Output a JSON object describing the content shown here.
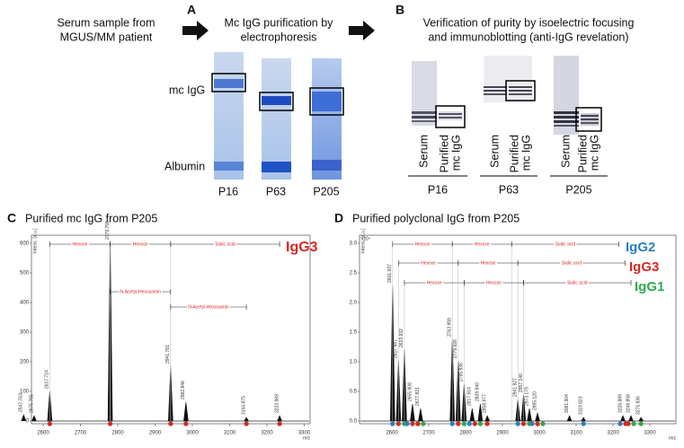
{
  "panel_a": {
    "label": "A",
    "step1": [
      "Serum sample from",
      "MGUS/MM patient"
    ],
    "step2": [
      "Mc IgG purification by",
      "electrophoresis"
    ],
    "band_labels": [
      "mc IgG",
      "Albumin"
    ],
    "lanes": [
      "P16",
      "P63",
      "P205"
    ]
  },
  "panel_b": {
    "label": "B",
    "title": [
      "Verification of purity by isoelectric focusing",
      "and immunoblotting (anti-IgG revelation)"
    ],
    "lane_labels": [
      "Serum",
      "Purified",
      "mc IgG"
    ],
    "samples": [
      "P16",
      "P63",
      "P205"
    ]
  },
  "panel_c": {
    "label": "C",
    "title": "Purified mc IgG from P205",
    "y_axis_label": "Intens. [a.u.]",
    "x_unit": "m/z",
    "xticks": [
      "2600",
      "2700",
      "2800",
      "2900",
      "3000",
      "3100",
      "3200",
      "3300"
    ],
    "yticks": [
      "0",
      "100",
      "200",
      "300",
      "400",
      "500",
      "600"
    ],
    "subclasses": [
      {
        "name": "IgG3",
        "color": "#d42a20"
      }
    ],
    "peaks": [
      "2547.763",
      "2575.755",
      "2617.724",
      "2779.755",
      "2941.781",
      "2982.846",
      "3144.875",
      "3233.969"
    ],
    "annotations": [
      "Hexose",
      "Hexose",
      "Sialic acid",
      "N-Acetyl-Hexosamin",
      "N-Acetyl-Hexosamin"
    ]
  },
  "panel_d": {
    "label": "D",
    "title": "Purified polyclonal IgG from P205",
    "y_axis_label": "Intens. [a.u.]",
    "y_exponent": "x10⁴",
    "x_unit": "m/z",
    "xticks": [
      "2600",
      "2700",
      "2800",
      "2900",
      "3000",
      "3100",
      "3200",
      "3300"
    ],
    "yticks": [
      "0.0",
      "0.5",
      "1.0",
      "1.5",
      "2.0",
      "2.5",
      "3.0"
    ],
    "subclasses": [
      {
        "name": "IgG2",
        "color": "#2a7fc1"
      },
      {
        "name": "IgG3",
        "color": "#d42a20"
      },
      {
        "name": "IgG1",
        "color": "#2fa84f"
      }
    ],
    "peaks": [
      "2601.937",
      "2617.947",
      "2633.932",
      "2655.908",
      "2677.821",
      "2763.959",
      "2779.926",
      "2795.936",
      "2817.914",
      "2839.940",
      "2858.877",
      "2941.927",
      "2957.146",
      "2973.179",
      "2995.120",
      "3081.904",
      "3119.823",
      "3226.889",
      "3248.858",
      "3275.936"
    ],
    "annotations": [
      "Hexose",
      "Hexose",
      "Sialic acid",
      "Hexose",
      "Hexose",
      "Sialic acid",
      "Hexose",
      "Hexose",
      "Sialic acid"
    ]
  }
}
